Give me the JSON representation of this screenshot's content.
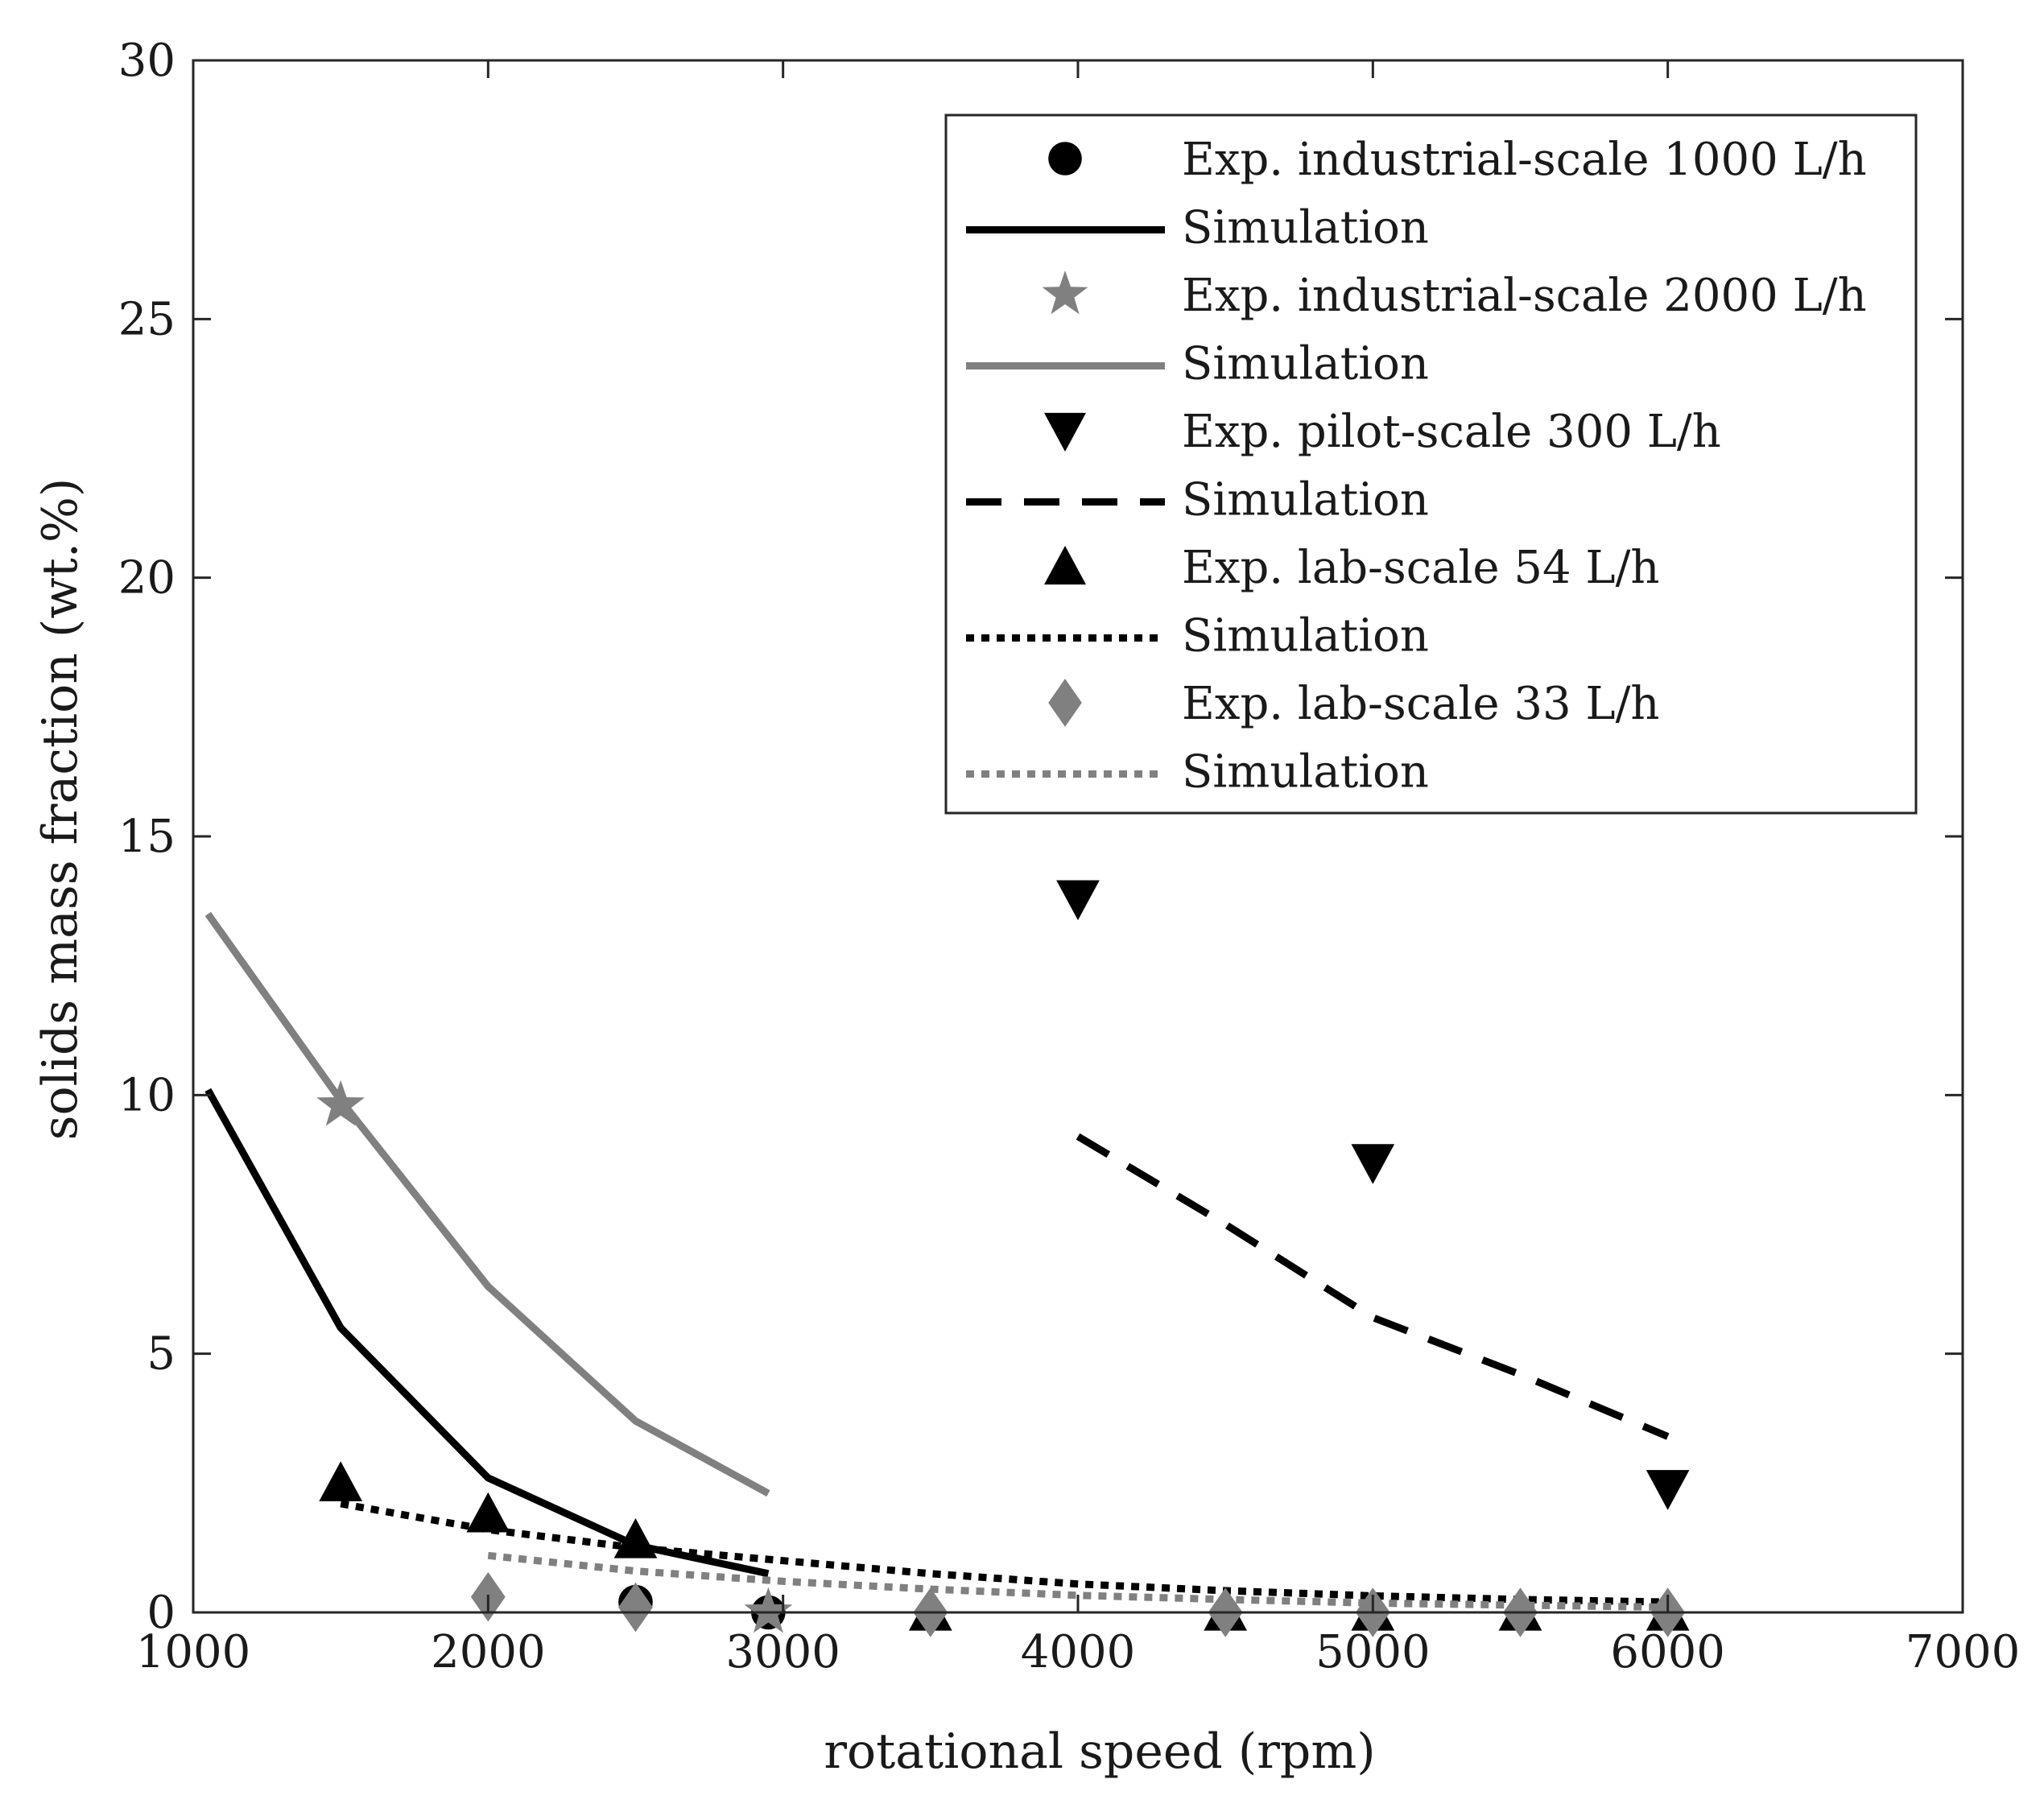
{
  "chart_data": {
    "type": "line",
    "title": "",
    "xlabel": "rotational speed (rpm)",
    "ylabel": "solids mass fraction (wt.%)",
    "xlim": [
      1000,
      7000
    ],
    "ylim": [
      0,
      30
    ],
    "xticks": [
      1000,
      2000,
      3000,
      4000,
      5000,
      6000,
      7000
    ],
    "yticks": [
      0,
      5,
      10,
      15,
      20,
      25,
      30
    ],
    "grid": false,
    "legend_position": "top-right",
    "colors": {
      "black": "#000000",
      "gray": "#808080"
    },
    "series": [
      {
        "name": "Exp. industrial-scale 1000 L/h",
        "kind": "marker",
        "marker": "circle",
        "color": "#000000",
        "x": [
          2500,
          2950
        ],
        "y": [
          0.2,
          0.0
        ]
      },
      {
        "name": "Simulation",
        "kind": "line",
        "dash": "solid",
        "color": "#000000",
        "x": [
          1050,
          1500,
          2000,
          2500,
          2950
        ],
        "y": [
          10.1,
          5.5,
          2.6,
          1.3,
          0.75
        ]
      },
      {
        "name": "Exp. industrial-scale 2000 L/h",
        "kind": "marker",
        "marker": "star",
        "color": "#808080",
        "x": [
          1500,
          2950
        ],
        "y": [
          9.8,
          0.0
        ]
      },
      {
        "name": "Simulation",
        "kind": "line",
        "dash": "solid",
        "color": "#808080",
        "x": [
          1050,
          1500,
          2000,
          2500,
          2950
        ],
        "y": [
          13.5,
          9.9,
          6.3,
          3.7,
          2.3
        ]
      },
      {
        "name": "Exp. pilot-scale 300 L/h",
        "kind": "marker",
        "marker": "triangle-down",
        "color": "#000000",
        "x": [
          4000,
          5000,
          6000
        ],
        "y": [
          13.8,
          8.7,
          2.4
        ]
      },
      {
        "name": "Simulation",
        "kind": "line",
        "dash": "dashed",
        "color": "#000000",
        "x": [
          4000,
          4500,
          5000,
          5500,
          6000
        ],
        "y": [
          9.2,
          7.5,
          5.7,
          4.6,
          3.4
        ]
      },
      {
        "name": "Exp. lab-scale 54 L/h",
        "kind": "marker",
        "marker": "triangle-up",
        "color": "#000000",
        "x": [
          1500,
          2000,
          2500,
          3500,
          4500,
          5000,
          5500,
          6000
        ],
        "y": [
          2.5,
          1.9,
          1.4,
          0.0,
          0.0,
          0.0,
          0.0,
          0.0
        ]
      },
      {
        "name": "Simulation",
        "kind": "line",
        "dash": "dotted",
        "color": "#000000",
        "x": [
          1500,
          2000,
          2500,
          3000,
          3500,
          4000,
          4500,
          5000,
          5500,
          6000
        ],
        "y": [
          2.1,
          1.6,
          1.25,
          1.0,
          0.75,
          0.55,
          0.42,
          0.32,
          0.25,
          0.2
        ]
      },
      {
        "name": "Exp. lab-scale 33 L/h",
        "kind": "marker",
        "marker": "diamond",
        "color": "#808080",
        "x": [
          2000,
          2500,
          3500,
          4500,
          5000,
          5500,
          6000
        ],
        "y": [
          0.3,
          0.1,
          0.0,
          0.0,
          0.0,
          0.0,
          0.0
        ]
      },
      {
        "name": "Simulation",
        "kind": "line",
        "dash": "dotted",
        "color": "#808080",
        "x": [
          2000,
          2500,
          3000,
          3500,
          4000,
          4500,
          5000,
          5500,
          6000
        ],
        "y": [
          1.1,
          0.8,
          0.6,
          0.45,
          0.33,
          0.25,
          0.18,
          0.14,
          0.1
        ]
      }
    ]
  }
}
